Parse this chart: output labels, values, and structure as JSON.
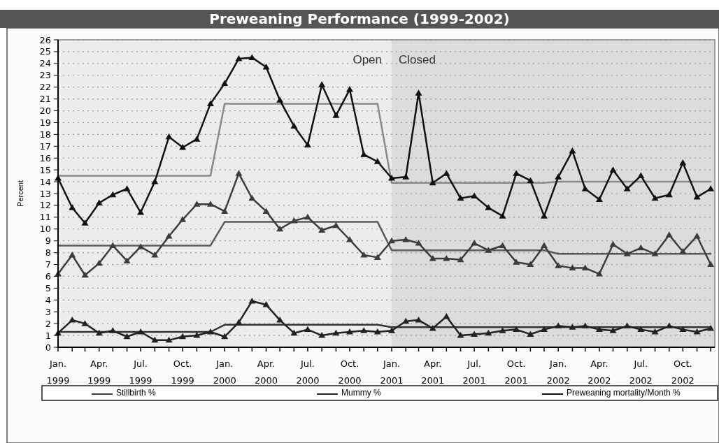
{
  "chart_data": {
    "type": "line",
    "title": "Preweaning Performance (1999-2002)",
    "ylabel": "Percent",
    "x": [
      "1999-01",
      "1999-02",
      "1999-03",
      "1999-04",
      "1999-05",
      "1999-06",
      "1999-07",
      "1999-08",
      "1999-09",
      "1999-10",
      "1999-11",
      "1999-12",
      "2000-01",
      "2000-02",
      "2000-03",
      "2000-04",
      "2000-05",
      "2000-06",
      "2000-07",
      "2000-08",
      "2000-09",
      "2000-10",
      "2000-11",
      "2000-12",
      "2001-01",
      "2001-02",
      "2001-03",
      "2001-04",
      "2001-05",
      "2001-06",
      "2001-07",
      "2001-08",
      "2001-09",
      "2001-10",
      "2001-11",
      "2001-12",
      "2002-01",
      "2002-02",
      "2002-03",
      "2002-04",
      "2002-05",
      "2002-06",
      "2002-07",
      "2002-08",
      "2002-09",
      "2002-10",
      "2002-11",
      "2002-12"
    ],
    "series": [
      {
        "name": "Stillbirth %",
        "color": "#3c3c3c",
        "values": [
          6.2,
          7.8,
          6.1,
          7.1,
          8.6,
          7.3,
          8.5,
          7.8,
          9.4,
          10.8,
          12.1,
          12.1,
          11.5,
          14.7,
          12.6,
          11.5,
          10.0,
          10.7,
          11.0,
          9.9,
          10.3,
          9.1,
          7.8,
          7.6,
          9.0,
          9.1,
          8.8,
          7.5,
          7.5,
          7.4,
          8.8,
          8.2,
          8.6,
          7.2,
          7.0,
          8.6,
          6.9,
          6.7,
          6.7,
          6.2,
          8.7,
          7.9,
          8.4,
          7.9,
          9.5,
          8.1,
          9.4,
          7.0
        ]
      },
      {
        "name": "Mummy %",
        "color": "#222222",
        "values": [
          1.2,
          2.3,
          2.0,
          1.2,
          1.4,
          0.9,
          1.3,
          0.6,
          0.6,
          0.9,
          1.0,
          1.3,
          0.9,
          2.1,
          3.9,
          3.6,
          2.3,
          1.2,
          1.5,
          1.0,
          1.2,
          1.3,
          1.4,
          1.3,
          1.4,
          2.2,
          2.3,
          1.6,
          2.6,
          1.0,
          1.1,
          1.2,
          1.4,
          1.5,
          1.1,
          1.5,
          1.8,
          1.7,
          1.8,
          1.5,
          1.4,
          1.8,
          1.5,
          1.3,
          1.8,
          1.5,
          1.3,
          1.6
        ]
      },
      {
        "name": "Preweaning mortality/Month %",
        "color": "#111111",
        "values": [
          14.3,
          11.8,
          10.5,
          12.2,
          12.9,
          13.4,
          11.4,
          14.0,
          17.8,
          16.9,
          17.6,
          20.6,
          22.3,
          24.4,
          24.5,
          23.7,
          20.9,
          18.7,
          17.1,
          22.2,
          19.6,
          21.8,
          16.3,
          15.7,
          14.3,
          14.4,
          21.5,
          13.9,
          14.7,
          12.6,
          12.8,
          11.8,
          11.1,
          14.7,
          14.1,
          11.1,
          14.4,
          16.6,
          13.4,
          12.5,
          15.0,
          13.4,
          14.5,
          12.6,
          12.9,
          15.6,
          12.7,
          13.4
        ]
      },
      {
        "color": "#5a5a5a",
        "marker": "none",
        "x": [
          "1999-01",
          "1999-12",
          "2000-01",
          "2000-12",
          "2001-01",
          "2001-12",
          "2002-01",
          "2002-12"
        ],
        "values": [
          8.6,
          8.6,
          10.6,
          10.6,
          8.2,
          8.2,
          7.9,
          7.9
        ]
      },
      {
        "color": "#333333",
        "marker": "none",
        "x": [
          "1999-01",
          "1999-12",
          "2000-01",
          "2000-12",
          "2001-01",
          "2001-12",
          "2002-01",
          "2002-12"
        ],
        "values": [
          1.3,
          1.3,
          1.9,
          1.9,
          1.7,
          1.7,
          1.7,
          1.7
        ]
      },
      {
        "color": "#8a8a8a",
        "marker": "none",
        "x": [
          "1999-01",
          "1999-12",
          "2000-01",
          "2000-12",
          "2001-01",
          "2001-12",
          "2002-01",
          "2002-12"
        ],
        "values": [
          14.5,
          14.5,
          20.6,
          20.6,
          13.9,
          13.9,
          14.0,
          14.0
        ]
      }
    ],
    "bands": [
      {
        "axis": "x",
        "from": "1999-01",
        "to": "2001-01",
        "label": "Open",
        "color": "#ececec"
      },
      {
        "axis": "x",
        "from": "2001-01",
        "to": "2002-12-10",
        "label": "Closed",
        "color": "#dcdcdc"
      }
    ],
    "xlim": [
      "1999-01",
      "2002-12-10"
    ],
    "xticks": [
      {
        "value": "1999-01",
        "label": "Jan.\n1999"
      },
      {
        "value": "1999-02",
        "label": null
      },
      {
        "value": "1999-03",
        "label": null
      },
      {
        "value": "1999-04",
        "label": "Apr.\n1999"
      },
      {
        "value": "1999-05",
        "label": null
      },
      {
        "value": "1999-06",
        "label": null
      },
      {
        "value": "1999-07",
        "label": "Jul.\n1999"
      },
      {
        "value": "1999-08",
        "label": null
      },
      {
        "value": "1999-09",
        "label": null
      },
      {
        "value": "1999-10",
        "label": "Oct.\n1999"
      },
      {
        "value": "1999-11",
        "label": null
      },
      {
        "value": "1999-12",
        "label": null
      },
      {
        "value": "2000-01",
        "label": "Jan.\n2000"
      },
      {
        "value": "2000-02",
        "label": null
      },
      {
        "value": "2000-03",
        "label": null
      },
      {
        "value": "2000-04",
        "label": "Apr.\n2000"
      },
      {
        "value": "2000-05",
        "label": null
      },
      {
        "value": "2000-06",
        "label": null
      },
      {
        "value": "2000-07",
        "label": "Jul.\n2000"
      },
      {
        "value": "2000-08",
        "label": null
      },
      {
        "value": "2000-09",
        "label": null
      },
      {
        "value": "2000-10",
        "label": "Oct.\n2000"
      },
      {
        "value": "2000-11",
        "label": null
      },
      {
        "value": "2000-12",
        "label": null
      },
      {
        "value": "2001-01",
        "label": "Jan.\n2001"
      },
      {
        "value": "2001-02",
        "label": null
      },
      {
        "value": "2001-03",
        "label": null
      },
      {
        "value": "2001-04",
        "label": "Apr.\n2001"
      },
      {
        "value": "2001-05",
        "label": null
      },
      {
        "value": "2001-06",
        "label": null
      },
      {
        "value": "2001-07",
        "label": "Jul.\n2001"
      },
      {
        "value": "2001-08",
        "label": null
      },
      {
        "value": "2001-09",
        "label": null
      },
      {
        "value": "2001-10",
        "label": "Oct.\n2001"
      },
      {
        "value": "2001-11",
        "label": null
      },
      {
        "value": "2001-12",
        "label": null
      },
      {
        "value": "2002-01",
        "label": "Jan.\n2002"
      },
      {
        "value": "2002-02",
        "label": null
      },
      {
        "value": "2002-03",
        "label": null
      },
      {
        "value": "2002-04",
        "label": "Apr.\n2002"
      },
      {
        "value": "2002-05",
        "label": null
      },
      {
        "value": "2002-06",
        "label": null
      },
      {
        "value": "2002-07",
        "label": "Jul.\n2002"
      },
      {
        "value": "2002-08",
        "label": null
      },
      {
        "value": "2002-09",
        "label": null
      },
      {
        "value": "2002-10",
        "label": "Oct.\n2002"
      },
      {
        "value": "2002-11",
        "label": null
      },
      {
        "value": "2002-12",
        "label": null
      }
    ],
    "ylim": [
      0,
      26
    ],
    "yticks": [
      0,
      1,
      2,
      3,
      4,
      5,
      6,
      7,
      8,
      9,
      10,
      11,
      12,
      13,
      14,
      15,
      16,
      17,
      18,
      19,
      20,
      21,
      22,
      23,
      24,
      25,
      26
    ],
    "grid": "y",
    "marker": "triangle",
    "line_style": "solid",
    "legend": "bottom"
  }
}
